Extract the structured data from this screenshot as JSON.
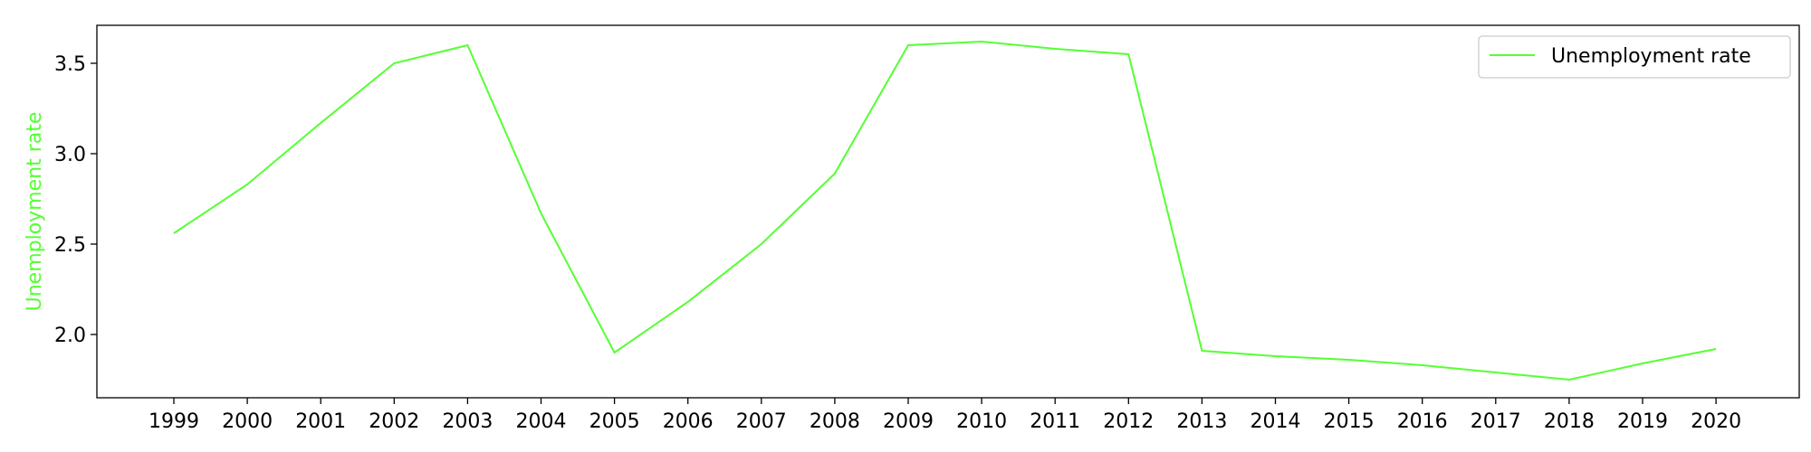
{
  "chart_data": {
    "type": "line",
    "x": [
      "1999",
      "2000",
      "2001",
      "2002",
      "2003",
      "2004",
      "2005",
      "2006",
      "2007",
      "2008",
      "2009",
      "2010",
      "2011",
      "2012",
      "2013",
      "2014",
      "2015",
      "2016",
      "2017",
      "2018",
      "2019",
      "2020"
    ],
    "series": [
      {
        "name": "Unemployment rate",
        "values": [
          2.56,
          2.83,
          3.17,
          3.5,
          3.6,
          2.67,
          1.9,
          2.18,
          2.5,
          2.89,
          3.6,
          3.62,
          3.58,
          3.55,
          1.91,
          1.88,
          1.86,
          1.83,
          1.79,
          1.75,
          1.84,
          1.92
        ]
      }
    ],
    "title": "",
    "xlabel": "",
    "ylabel": "Unemployment rate",
    "ylim": [
      1.65,
      3.71
    ],
    "yticks": [
      "2.0",
      "2.5",
      "3.0",
      "3.5"
    ],
    "grid": false,
    "legend": "top-right",
    "colors": {
      "line": "#55ff33",
      "ylabel": "#55ff33",
      "axes": "#000000"
    }
  }
}
